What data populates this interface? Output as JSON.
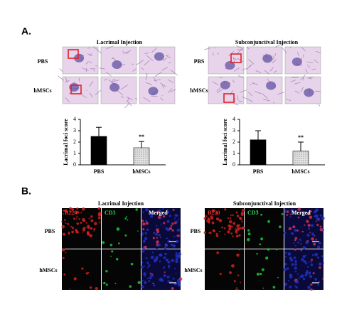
{
  "panel_a": {
    "label": "A.",
    "groups": [
      {
        "title": "Lacrimal  Injection",
        "rows": [
          "PBS",
          "hMSCs"
        ]
      },
      {
        "title": "Subconjunctival  Injection",
        "rows": [
          "PBS",
          "hMSCs"
        ]
      }
    ]
  },
  "panel_b": {
    "label": "B.",
    "groups": [
      {
        "title": "Lacrimal  Injection",
        "channels": [
          "B220",
          "CD3",
          "Merged"
        ],
        "rows": [
          "PBS",
          "hMSCs"
        ]
      },
      {
        "title": "Subconjunctival  Injection",
        "channels": [
          "B220",
          "CD3",
          "Merged"
        ],
        "rows": [
          "PBS",
          "hMSCs"
        ]
      }
    ]
  },
  "chart_data": [
    {
      "type": "bar",
      "ylabel": "Lacrimal foci score",
      "categories": [
        "PBS",
        "hMSCs"
      ],
      "values": [
        2.5,
        1.5
      ],
      "errors": [
        0.8,
        0.55
      ],
      "colors": [
        "#000000",
        "#e2e2e2"
      ],
      "annotation": "**",
      "ylim": [
        0,
        4
      ],
      "yticks": [
        0,
        1,
        2,
        3,
        4
      ]
    },
    {
      "type": "bar",
      "ylabel": "Lacrimal  foci score",
      "categories": [
        "PBS",
        "hMSCs"
      ],
      "values": [
        2.2,
        1.2
      ],
      "errors": [
        0.8,
        0.8
      ],
      "colors": [
        "#000000",
        "#e2e2e2"
      ],
      "annotation": "**",
      "ylim": [
        0,
        4
      ],
      "yticks": [
        0,
        1,
        2,
        3,
        4
      ]
    }
  ]
}
